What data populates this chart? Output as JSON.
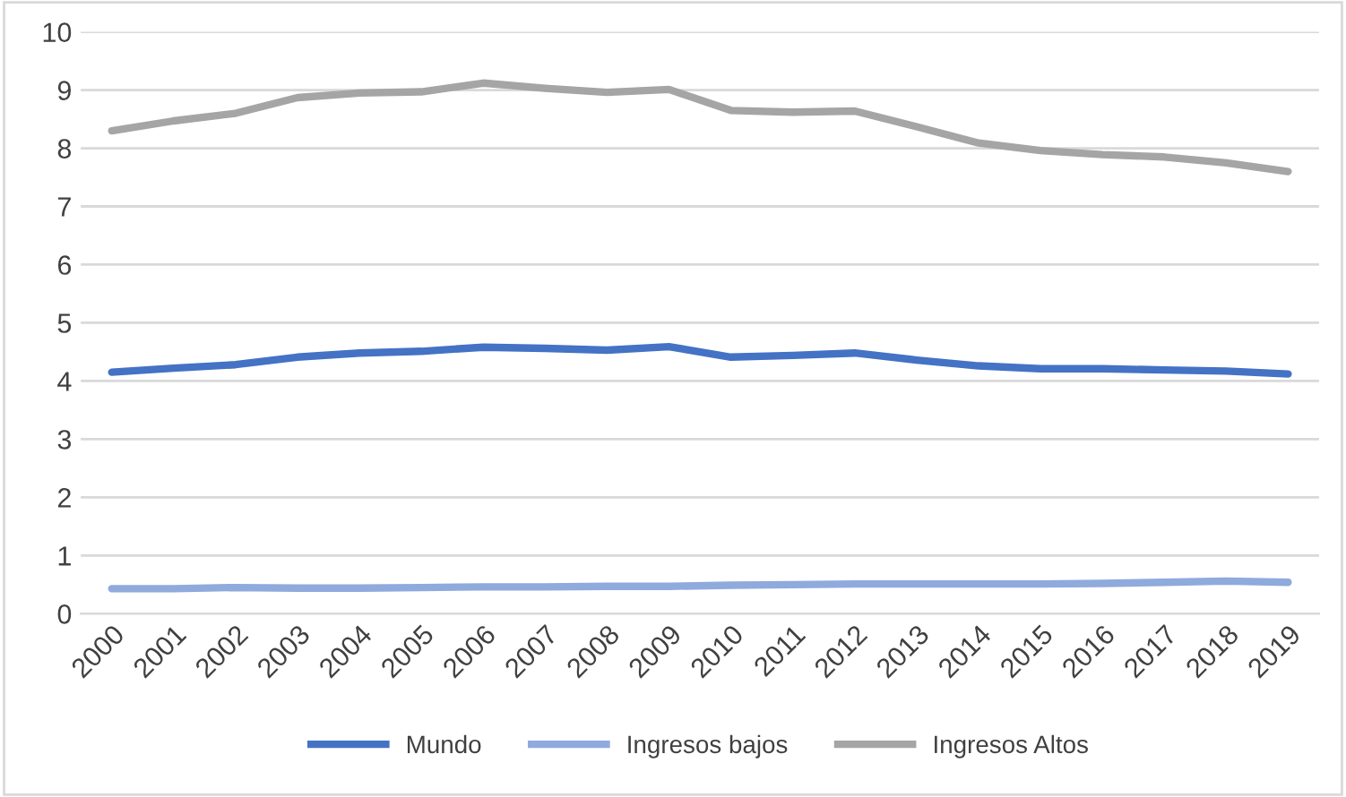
{
  "chart_data": {
    "type": "line",
    "categories": [
      "2000",
      "2001",
      "2002",
      "2003",
      "2004",
      "2005",
      "2006",
      "2007",
      "2008",
      "2009",
      "2010",
      "2011",
      "2012",
      "2013",
      "2014",
      "2015",
      "2016",
      "2017",
      "2018",
      "2019"
    ],
    "series": [
      {
        "name": "Mundo",
        "color": "#4472c4",
        "values": [
          4.15,
          4.22,
          4.28,
          4.41,
          4.48,
          4.51,
          4.58,
          4.56,
          4.53,
          4.59,
          4.41,
          4.44,
          4.48,
          4.36,
          4.26,
          4.21,
          4.21,
          4.19,
          4.17,
          4.12
        ]
      },
      {
        "name": "Ingresos bajos",
        "color": "#8faadc",
        "values": [
          0.43,
          0.43,
          0.45,
          0.44,
          0.44,
          0.45,
          0.46,
          0.46,
          0.47,
          0.47,
          0.49,
          0.5,
          0.51,
          0.51,
          0.51,
          0.51,
          0.52,
          0.54,
          0.56,
          0.54
        ]
      },
      {
        "name": "Ingresos Altos",
        "color": "#a5a5a5",
        "values": [
          8.3,
          8.47,
          8.6,
          8.87,
          8.95,
          8.97,
          9.12,
          9.03,
          8.96,
          9.01,
          8.65,
          8.62,
          8.64,
          8.37,
          8.09,
          7.96,
          7.89,
          7.85,
          7.75,
          7.6
        ]
      }
    ],
    "ylim": [
      0,
      10
    ],
    "yticks": [
      0,
      1,
      2,
      3,
      4,
      5,
      6,
      7,
      8,
      9,
      10
    ],
    "grid": "y",
    "legend": "bottom",
    "marker": "none",
    "line_style": "solid"
  }
}
